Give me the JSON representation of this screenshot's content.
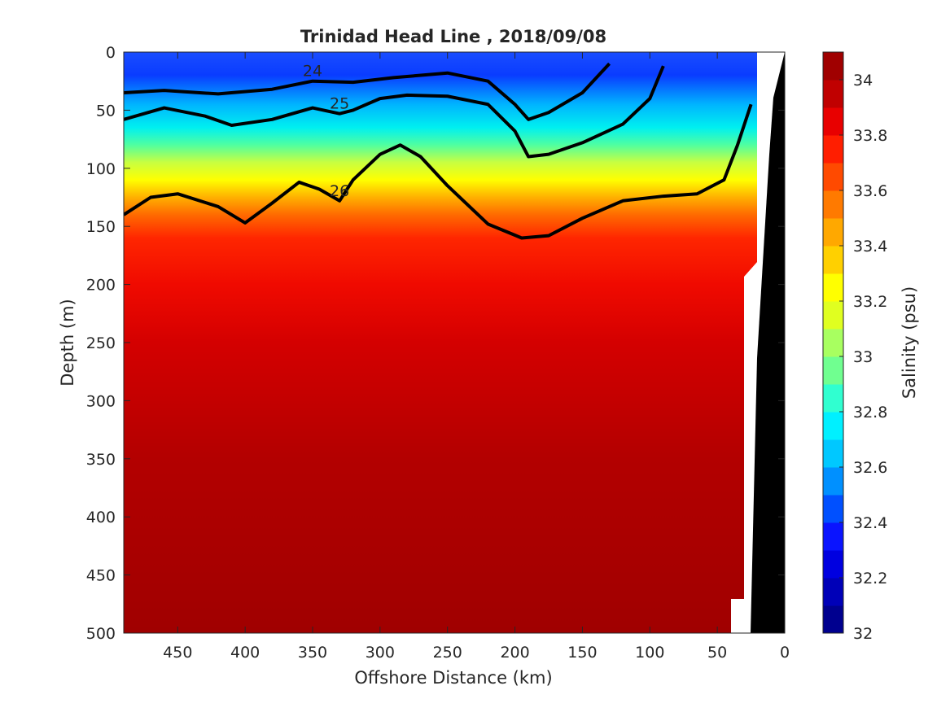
{
  "chart_data": {
    "type": "contour",
    "title": "Trinidad Head Line , 2018/09/08",
    "xlabel": "Offshore Distance (km)",
    "ylabel": "Depth (m)",
    "colorbar_label": "Salinity (psu)",
    "x_direction": "reversed",
    "y_direction": "reversed",
    "xlim": [
      0,
      490
    ],
    "ylim": [
      0,
      500
    ],
    "xticks": [
      450,
      400,
      350,
      300,
      250,
      200,
      150,
      100,
      50,
      0
    ],
    "yticks": [
      0,
      50,
      100,
      150,
      200,
      250,
      300,
      350,
      400,
      450,
      500
    ],
    "colorbar": {
      "range": [
        32,
        34.1
      ],
      "tick_labels": [
        "32",
        "32.2",
        "32.4",
        "32.6",
        "32.8",
        "33",
        "33.2",
        "33.4",
        "33.6",
        "33.8",
        "34"
      ],
      "tick_values": [
        32,
        32.2,
        32.4,
        32.6,
        32.8,
        33,
        33.2,
        33.4,
        33.6,
        33.8,
        34
      ],
      "colors": [
        "#00008f",
        "#0000b8",
        "#0000e0",
        "#0a14ff",
        "#0050ff",
        "#0090ff",
        "#00c8ff",
        "#00f0ff",
        "#30ffd0",
        "#70ff90",
        "#a8ff60",
        "#e0ff20",
        "#ffff00",
        "#ffd000",
        "#ffa800",
        "#ff7a00",
        "#ff4a00",
        "#ff1e00",
        "#e80000",
        "#c00000",
        "#a00000"
      ]
    },
    "salinity_profile": {
      "depths": [
        0,
        15,
        30,
        45,
        60,
        75,
        90,
        105,
        120,
        135,
        150,
        170,
        200,
        250,
        330,
        420,
        480,
        500
      ],
      "values": [
        32.45,
        32.55,
        32.7,
        32.82,
        32.95,
        33.05,
        33.2,
        33.3,
        33.42,
        33.55,
        33.7,
        33.82,
        33.93,
        33.97,
        34.02,
        34.06,
        34.1,
        34.12
      ]
    },
    "isopycnals": [
      {
        "label": "24",
        "x": [
          490,
          460,
          420,
          380,
          350,
          320,
          290,
          250,
          220,
          200,
          190,
          175,
          150,
          130
        ],
        "y": [
          35,
          33,
          36,
          32,
          25,
          26,
          22,
          18,
          25,
          45,
          58,
          52,
          35,
          10
        ]
      },
      {
        "label": "25",
        "x": [
          490,
          460,
          430,
          410,
          380,
          350,
          330,
          320,
          300,
          280,
          250,
          220,
          200,
          190,
          175,
          150,
          120,
          100,
          90
        ],
        "y": [
          58,
          48,
          55,
          63,
          58,
          48,
          53,
          50,
          40,
          37,
          38,
          45,
          68,
          90,
          88,
          78,
          62,
          40,
          12
        ]
      },
      {
        "label": "26",
        "x": [
          490,
          470,
          450,
          420,
          400,
          380,
          360,
          345,
          330,
          320,
          300,
          285,
          270,
          250,
          220,
          195,
          175,
          150,
          120,
          90,
          65,
          45,
          35,
          25
        ],
        "y": [
          140,
          125,
          122,
          133,
          147,
          130,
          112,
          118,
          128,
          110,
          88,
          80,
          90,
          115,
          148,
          160,
          158,
          143,
          128,
          124,
          122,
          110,
          80,
          45
        ]
      }
    ],
    "colorbar_labels_inline": {
      "24": "24",
      "25": "25",
      "26": "26"
    }
  }
}
